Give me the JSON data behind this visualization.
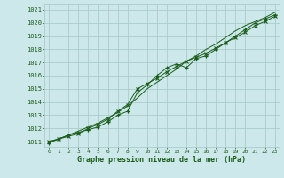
{
  "title": "Graphe pression niveau de la mer (hPa)",
  "background_color": "#cce8ea",
  "grid_color": "#aacccc",
  "line_color": "#1a5c1a",
  "marker_color": "#1a5c1a",
  "xlim": [
    -0.5,
    23.5
  ],
  "ylim": [
    1010.6,
    1021.4
  ],
  "xticks": [
    0,
    1,
    2,
    3,
    4,
    5,
    6,
    7,
    8,
    9,
    10,
    11,
    12,
    13,
    14,
    15,
    16,
    17,
    18,
    19,
    20,
    21,
    22,
    23
  ],
  "yticks": [
    1011,
    1012,
    1013,
    1014,
    1015,
    1016,
    1017,
    1018,
    1019,
    1020,
    1021
  ],
  "series1_x": [
    0,
    1,
    2,
    3,
    4,
    5,
    6,
    7,
    8,
    9,
    10,
    11,
    12,
    13,
    14,
    15,
    16,
    17,
    18,
    19,
    20,
    21,
    22,
    23
  ],
  "series1_y": [
    1010.9,
    1011.2,
    1011.5,
    1011.7,
    1011.9,
    1012.1,
    1012.5,
    1013.0,
    1013.3,
    1014.7,
    1015.3,
    1016.0,
    1016.6,
    1016.9,
    1016.6,
    1017.3,
    1017.5,
    1018.0,
    1018.5,
    1019.0,
    1019.5,
    1020.0,
    1020.3,
    1020.6
  ],
  "series2_x": [
    0,
    1,
    2,
    3,
    4,
    5,
    6,
    7,
    8,
    9,
    10,
    11,
    12,
    13,
    14,
    15,
    16,
    17,
    18,
    19,
    20,
    21,
    22,
    23
  ],
  "series2_y": [
    1011.0,
    1011.2,
    1011.4,
    1011.6,
    1012.0,
    1012.3,
    1012.7,
    1013.3,
    1013.8,
    1015.0,
    1015.4,
    1015.8,
    1016.3,
    1016.7,
    1017.1,
    1017.4,
    1017.7,
    1018.1,
    1018.5,
    1018.9,
    1019.3,
    1019.8,
    1020.1,
    1020.5
  ],
  "series3_x": [
    0,
    1,
    2,
    3,
    4,
    5,
    6,
    7,
    8,
    9,
    10,
    11,
    12,
    13,
    14,
    15,
    16,
    17,
    18,
    19,
    20,
    21,
    22,
    23
  ],
  "series3_y": [
    1011.0,
    1011.2,
    1011.5,
    1011.8,
    1012.1,
    1012.4,
    1012.8,
    1013.2,
    1013.7,
    1014.3,
    1015.0,
    1015.5,
    1016.0,
    1016.5,
    1017.1,
    1017.5,
    1018.0,
    1018.4,
    1018.9,
    1019.4,
    1019.8,
    1020.1,
    1020.4,
    1020.8
  ]
}
